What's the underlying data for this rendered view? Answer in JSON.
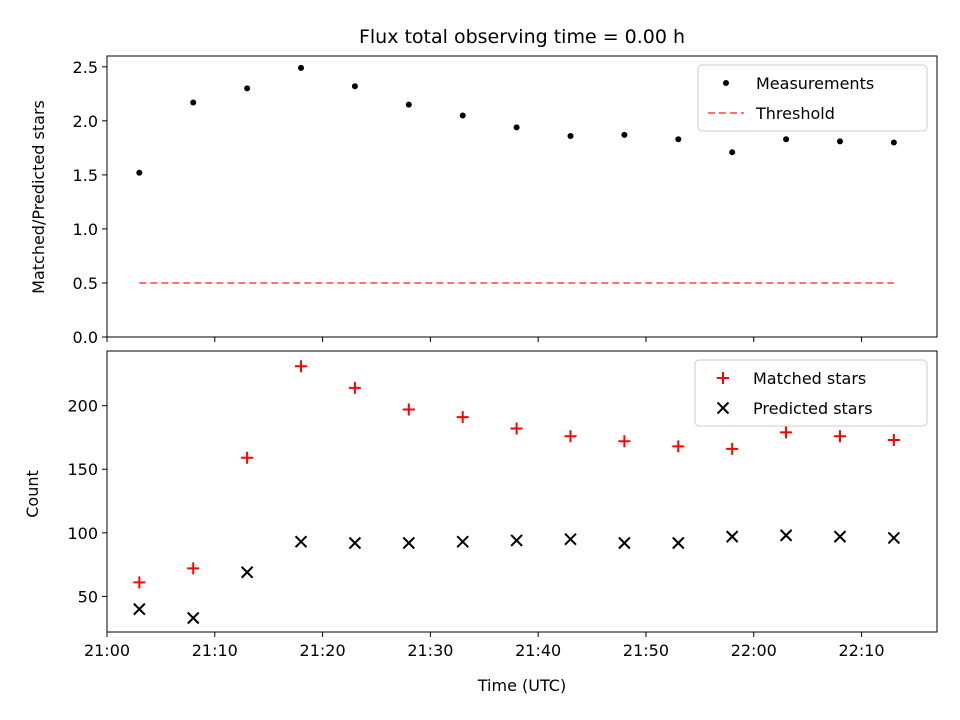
{
  "chart_data": [
    {
      "type": "scatter",
      "title": "Flux total observing time = 0.00 h",
      "xlabel": "",
      "ylabel": "Matched/Predicted stars",
      "ylim": [
        0,
        2.6
      ],
      "yticks": [
        "0.0",
        "0.5",
        "1.0",
        "1.5",
        "2.0",
        "2.5"
      ],
      "xlim": [
        "21:00",
        "22:17"
      ],
      "x": [
        "21:03",
        "21:08",
        "21:13",
        "21:18",
        "21:23",
        "21:28",
        "21:33",
        "21:38",
        "21:43",
        "21:48",
        "21:53",
        "21:58",
        "22:03",
        "22:08",
        "22:13"
      ],
      "series": [
        {
          "name": "Measurements",
          "marker": "dot",
          "color": "#000000",
          "values": [
            1.52,
            2.17,
            2.3,
            2.49,
            2.32,
            2.15,
            2.05,
            1.94,
            1.86,
            1.87,
            1.83,
            1.71,
            1.83,
            1.81,
            1.8
          ]
        },
        {
          "name": "Threshold",
          "style": "dashed-line",
          "color": "#ff7070",
          "values": [
            0.5,
            0.5
          ]
        }
      ],
      "legend": "top-right",
      "grid": false
    },
    {
      "type": "scatter",
      "title": "",
      "xlabel": "Time (UTC)",
      "ylabel": "Count",
      "ylim": [
        22,
        243
      ],
      "yticks": [
        "50",
        "100",
        "150",
        "200"
      ],
      "xlim": [
        "21:00",
        "22:17"
      ],
      "xticks": [
        "21:00",
        "21:10",
        "21:20",
        "21:30",
        "21:40",
        "21:50",
        "22:00",
        "22:10"
      ],
      "x": [
        "21:03",
        "21:08",
        "21:13",
        "21:18",
        "21:23",
        "21:28",
        "21:33",
        "21:38",
        "21:43",
        "21:48",
        "21:53",
        "21:58",
        "22:03",
        "22:08",
        "22:13"
      ],
      "series": [
        {
          "name": "Matched stars",
          "marker": "plus",
          "color": "#ff0000",
          "values": [
            61,
            72,
            159,
            231,
            214,
            197,
            191,
            182,
            176,
            172,
            168,
            166,
            179,
            176,
            173
          ]
        },
        {
          "name": "Predicted stars",
          "marker": "x",
          "color": "#000000",
          "values": [
            40,
            33,
            69,
            93,
            92,
            92,
            93,
            94,
            95,
            92,
            92,
            97,
            98,
            97,
            96
          ]
        }
      ],
      "legend": "top-right",
      "grid": false
    }
  ]
}
